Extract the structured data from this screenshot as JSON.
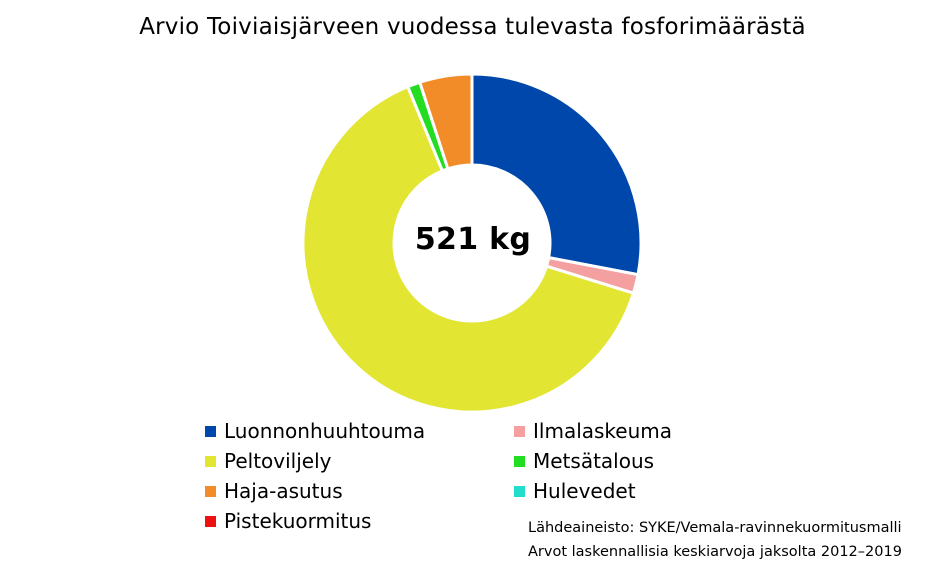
{
  "chart_data": {
    "type": "pie",
    "title": "Arvio Toiviaisjärveen vuodessa tulevasta fosforimäärästä",
    "center_label": "521 kg",
    "slices": [
      {
        "name": "Luonnonhuuhtouma",
        "value": 28.0,
        "color": "#0047AB"
      },
      {
        "name": "Ilmalaskeuma",
        "value": 1.8,
        "color": "#F4A0A0"
      },
      {
        "name": "Peltoviljely",
        "value": 64.0,
        "color": "#E2E532"
      },
      {
        "name": "Metsätalous",
        "value": 1.2,
        "color": "#22DD22"
      },
      {
        "name": "Haja-asutus",
        "value": 5.0,
        "color": "#F28C28"
      },
      {
        "name": "Hulevedet",
        "value": 0.0,
        "color": "#22DDCC"
      },
      {
        "name": "Pistekuormitus",
        "value": 0.0,
        "color": "#EE1111"
      }
    ],
    "legend": [
      {
        "label": "Luonnonhuuhtouma",
        "color": "#0047AB"
      },
      {
        "label": "Ilmalaskeuma",
        "color": "#F4A0A0"
      },
      {
        "label": "Peltoviljely",
        "color": "#E2E532"
      },
      {
        "label": "Metsätalous",
        "color": "#22DD22"
      },
      {
        "label": "Haja-asutus",
        "color": "#F28C28"
      },
      {
        "label": "Hulevedet",
        "color": "#22DDCC"
      },
      {
        "label": "Pistekuormitus",
        "color": "#EE1111"
      }
    ],
    "legend_placement": "bottom",
    "notes": [
      "Lähdeaineisto: SYKE/Vemala-ravinnekuormitusmalli",
      "Arvot laskennallisia keskiarvoja jaksolta 2012–2019"
    ]
  }
}
